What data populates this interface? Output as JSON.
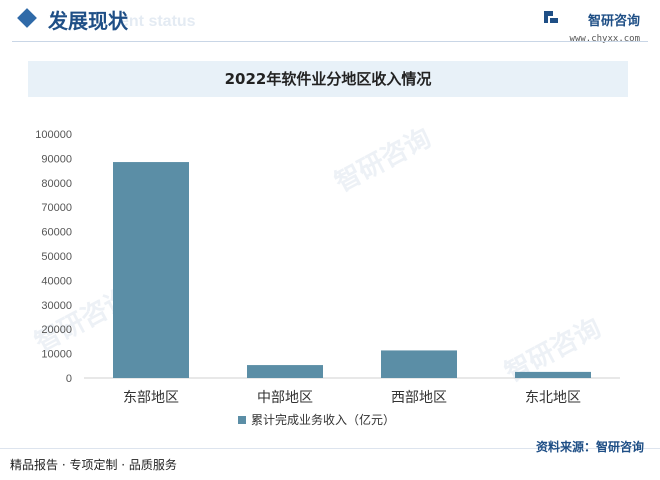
{
  "header": {
    "title": "发展现状",
    "subtitle": "ent status"
  },
  "brand": {
    "name": "智研咨询",
    "url": "www.chyxx.com"
  },
  "watermark": {
    "text": "智研咨询"
  },
  "footer": {
    "left": "精品报告 · 专项定制 · 品质服务",
    "source": "资料来源：智研咨询"
  },
  "colors": {
    "bar": "#5b8ea6",
    "title_band": "#e8f1f8",
    "accent": "#1f4f86"
  },
  "chart_data": {
    "type": "bar",
    "title": "2022年软件业分地区收入情况",
    "categories": [
      "东部地区",
      "中部地区",
      "西部地区",
      "东北地区"
    ],
    "series": [
      {
        "name": "累计完成业务收入（亿元）",
        "values": [
          88500,
          5300,
          11300,
          2500
        ]
      }
    ],
    "ylim": [
      0,
      100000
    ],
    "yticks": [
      0,
      10000,
      20000,
      30000,
      40000,
      50000,
      60000,
      70000,
      80000,
      90000,
      100000
    ],
    "grid": false,
    "legend": "bottom"
  }
}
